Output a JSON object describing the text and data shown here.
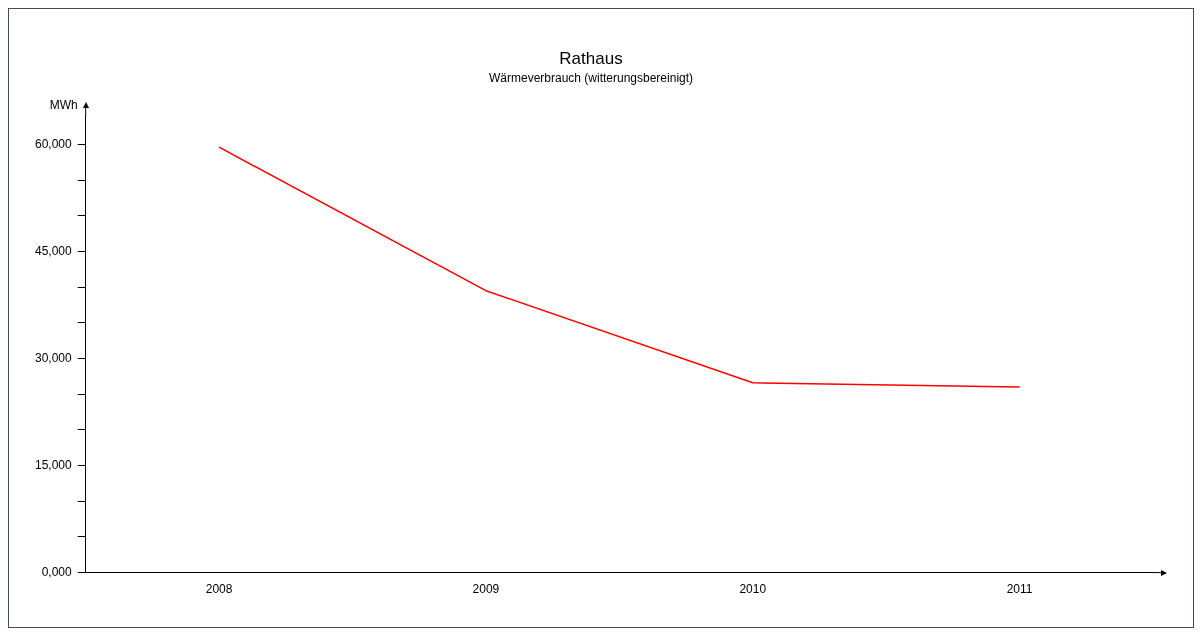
{
  "chart_data": {
    "type": "line",
    "title": "Rathaus",
    "subtitle": "Wärmeverbrauch (witterungsbereinigt)",
    "ylabel": "MWh",
    "categories": [
      "2008",
      "2009",
      "2010",
      "2011"
    ],
    "series": [
      {
        "color": "#ff0000",
        "values": [
          59600,
          39500,
          26600,
          26000
        ]
      }
    ],
    "ylim": [
      0,
      64000
    ],
    "yticks": [
      {
        "value": 0,
        "label": "0,000"
      },
      {
        "value": 5000,
        "label": null
      },
      {
        "value": 10000,
        "label": null
      },
      {
        "value": 15000,
        "label": "15,000"
      },
      {
        "value": 20000,
        "label": null
      },
      {
        "value": 25000,
        "label": null
      },
      {
        "value": 30000,
        "label": "30,000"
      },
      {
        "value": 35000,
        "label": null
      },
      {
        "value": 40000,
        "label": null
      },
      {
        "value": 45000,
        "label": "45,000"
      },
      {
        "value": 50000,
        "label": null
      },
      {
        "value": 55000,
        "label": null
      },
      {
        "value": 60000,
        "label": "60,000"
      }
    ],
    "grid": false,
    "legend": false,
    "marker": "none",
    "line_style": "solid"
  }
}
